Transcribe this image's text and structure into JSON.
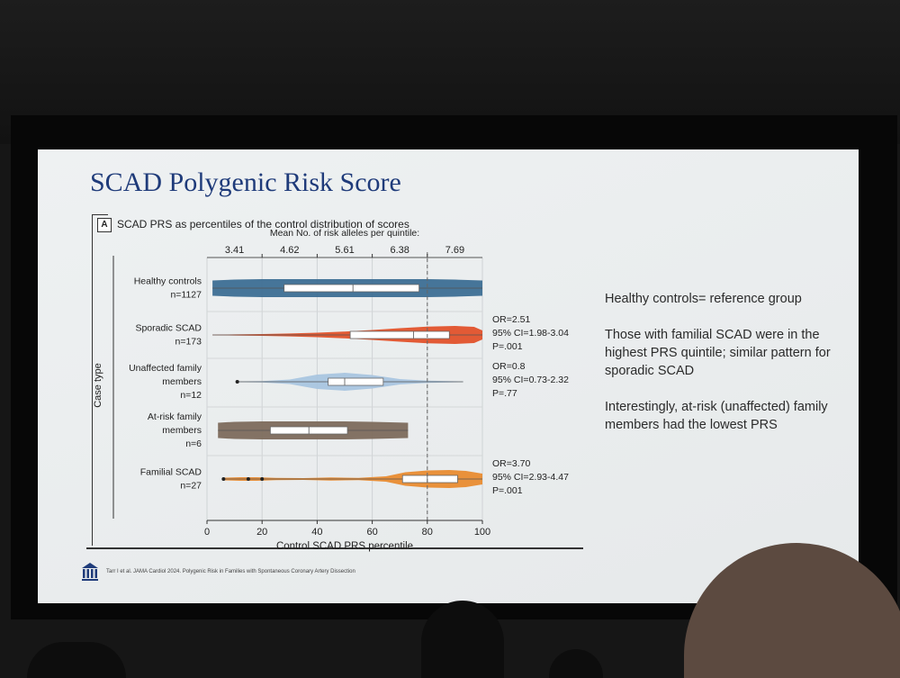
{
  "slide": {
    "title": "SCAD Polygenic Risk Score",
    "panel_label": "A",
    "panel_title": "SCAD PRS as percentiles of the control distribution of scores",
    "footer_citation": "Tarr I et al. JAMA Cardiol 2024. Polygenic Risk in Families with Spontaneous Coronary Artery Dissection",
    "notes": [
      "Healthy controls= reference group",
      "Those with familial SCAD were in the highest PRS quintile; similar pattern for sporadic SCAD",
      "Interestingly, at-risk (unaffected) family members had the lowest PRS"
    ]
  },
  "colors": {
    "title": "#1f3b7a",
    "healthy": "#3d6e93",
    "sporadic": "#e2522a",
    "unaffected": "#a9c5df",
    "atrisk": "#7d6b5c",
    "familial": "#e98c31"
  },
  "chart_data": {
    "type": "violin",
    "title": "SCAD PRS as percentiles of the control distribution of scores",
    "xlabel": "Control SCAD PRS percentile",
    "ylabel": "Case type",
    "xlim": [
      0,
      100
    ],
    "x_ticks": [
      0,
      20,
      40,
      60,
      80,
      100
    ],
    "reference_line_x": 80,
    "top_axis_title": "Mean No. of risk alleles per quintile:",
    "quintile_means": [
      {
        "x": 10,
        "label": "3.41"
      },
      {
        "x": 30,
        "label": "4.62"
      },
      {
        "x": 50,
        "label": "5.61"
      },
      {
        "x": 70,
        "label": "6.38"
      },
      {
        "x": 90,
        "label": "7.69"
      }
    ],
    "groups": [
      {
        "key": "healthy",
        "name": "Healthy controls",
        "n": "n=1127",
        "box": {
          "min": 2,
          "q1": 28,
          "median": 53,
          "q3": 77,
          "max": 100
        },
        "outliers": [],
        "density": [
          [
            2,
            0.85
          ],
          [
            10,
            0.95
          ],
          [
            20,
            1
          ],
          [
            30,
            1
          ],
          [
            40,
            1
          ],
          [
            50,
            1
          ],
          [
            60,
            1
          ],
          [
            70,
            1
          ],
          [
            80,
            1
          ],
          [
            90,
            0.95
          ],
          [
            100,
            0.85
          ]
        ],
        "stats": []
      },
      {
        "key": "sporadic",
        "name": "Sporadic SCAD",
        "n": "n=173",
        "box": {
          "min": 2,
          "q1": 52,
          "median": 75,
          "q3": 88,
          "max": 100
        },
        "outliers": [],
        "density": [
          [
            2,
            0.02
          ],
          [
            10,
            0.06
          ],
          [
            20,
            0.1
          ],
          [
            30,
            0.16
          ],
          [
            40,
            0.25
          ],
          [
            50,
            0.38
          ],
          [
            60,
            0.55
          ],
          [
            70,
            0.75
          ],
          [
            80,
            0.92
          ],
          [
            90,
            1
          ],
          [
            97,
            0.9
          ],
          [
            100,
            0.5
          ]
        ],
        "stats": [
          "OR=2.51",
          "95% CI=1.98-3.04",
          "P=.001"
        ]
      },
      {
        "key": "unaffected",
        "name": "Unaffected family members",
        "n": "n=12",
        "box": {
          "min": 11,
          "q1": 44,
          "median": 50,
          "q3": 64,
          "max": 93
        },
        "outliers": [
          11
        ],
        "density": [
          [
            11,
            0.04
          ],
          [
            20,
            0.08
          ],
          [
            30,
            0.25
          ],
          [
            40,
            0.8
          ],
          [
            50,
            1
          ],
          [
            60,
            0.75
          ],
          [
            70,
            0.3
          ],
          [
            80,
            0.12
          ],
          [
            93,
            0.04
          ]
        ],
        "stats": [
          "OR=0.8",
          "95% CI=0.73-2.32",
          "P=.77"
        ]
      },
      {
        "key": "atrisk",
        "name": "At-risk family members",
        "n": "n=6",
        "box": {
          "min": 4,
          "q1": 23,
          "median": 37,
          "q3": 51,
          "max": 73
        },
        "outliers": [],
        "density": [
          [
            4,
            0.85
          ],
          [
            10,
            0.95
          ],
          [
            20,
            1
          ],
          [
            30,
            1
          ],
          [
            40,
            1
          ],
          [
            50,
            1
          ],
          [
            60,
            0.95
          ],
          [
            73,
            0.85
          ]
        ],
        "stats": []
      },
      {
        "key": "familial",
        "name": "Familial SCAD",
        "n": "n=27",
        "box": {
          "min": 6,
          "q1": 71,
          "median": 80,
          "q3": 91,
          "max": 100
        },
        "outliers": [
          6,
          15,
          20
        ],
        "density": [
          [
            6,
            0.15
          ],
          [
            12,
            0.2
          ],
          [
            18,
            0.2
          ],
          [
            25,
            0.12
          ],
          [
            35,
            0.1
          ],
          [
            45,
            0.18
          ],
          [
            55,
            0.12
          ],
          [
            65,
            0.3
          ],
          [
            72,
            0.75
          ],
          [
            80,
            0.95
          ],
          [
            88,
            1
          ],
          [
            94,
            0.9
          ],
          [
            100,
            0.6
          ]
        ],
        "stats": [
          "OR=3.70",
          "95% CI=2.93-4.47",
          "P=.001"
        ]
      }
    ]
  }
}
